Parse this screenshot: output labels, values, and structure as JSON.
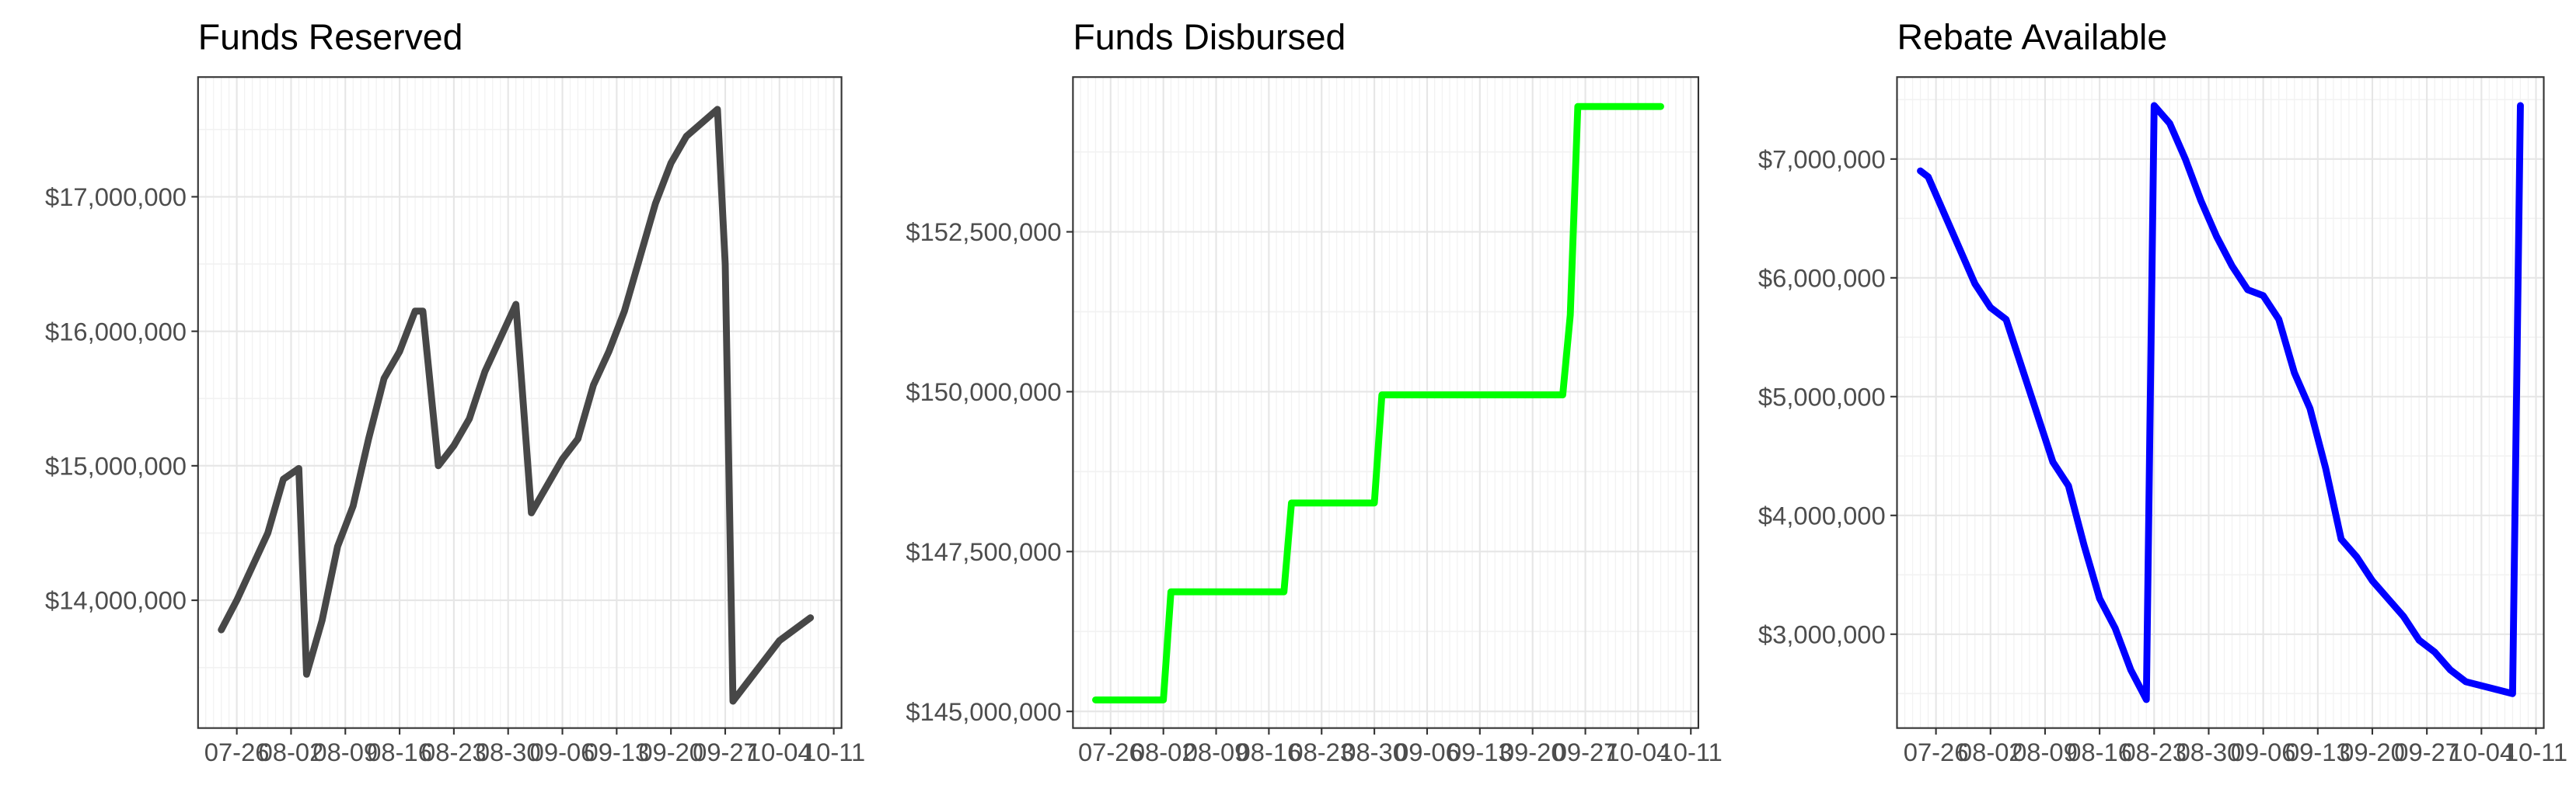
{
  "chart_data": [
    {
      "type": "line",
      "title": "Funds Reserved",
      "color": "#474747",
      "x": [
        "07-24",
        "07-26",
        "07-28",
        "07-30",
        "08-01",
        "08-03",
        "08-04",
        "08-06",
        "08-08",
        "08-10",
        "08-12",
        "08-14",
        "08-16",
        "08-18",
        "08-19",
        "08-21",
        "08-23",
        "08-25",
        "08-27",
        "08-29",
        "08-31",
        "09-02",
        "09-04",
        "09-06",
        "09-08",
        "09-10",
        "09-12",
        "09-14",
        "09-16",
        "09-18",
        "09-20",
        "09-22",
        "09-26",
        "09-27",
        "09-28",
        "09-30",
        "10-02",
        "10-04",
        "10-08"
      ],
      "values": [
        13780000,
        14000000,
        14250000,
        14500000,
        14900000,
        14980000,
        13450000,
        13850000,
        14400000,
        14700000,
        15200000,
        15650000,
        15850000,
        16150000,
        16150000,
        15000000,
        15150000,
        15350000,
        15700000,
        15950000,
        16200000,
        14650000,
        14850000,
        15050000,
        15200000,
        15600000,
        15850000,
        16150000,
        16550000,
        16950000,
        17250000,
        17450000,
        17650000,
        16500000,
        13250000,
        13400000,
        13550000,
        13700000,
        13870000
      ],
      "xlim": [
        "07-21",
        "10-12"
      ],
      "xticks": [
        "07-26",
        "08-02",
        "08-09",
        "08-16",
        "08-23",
        "08-30",
        "09-06",
        "09-13",
        "09-20",
        "09-27",
        "10-04",
        "10-11"
      ],
      "ylim": [
        13050000,
        17890000
      ],
      "yticks": [
        {
          "value": 14000000,
          "label": "$14,000,000"
        },
        {
          "value": 15000000,
          "label": "$15,000,000"
        },
        {
          "value": 16000000,
          "label": "$16,000,000"
        },
        {
          "value": 17000000,
          "label": "$17,000,000"
        }
      ],
      "grid": true
    },
    {
      "type": "line",
      "title": "Funds Disbursed",
      "color": "#00ff00",
      "x": [
        "07-24",
        "08-02",
        "08-03",
        "08-18",
        "08-19",
        "08-30",
        "08-31",
        "09-24",
        "09-25",
        "09-26",
        "10-07"
      ],
      "values": [
        145180000,
        145180000,
        146870000,
        146870000,
        148260000,
        148260000,
        149950000,
        149950000,
        151200000,
        154460000,
        154460000
      ],
      "xlim": [
        "07-21",
        "10-12"
      ],
      "xticks": [
        "07-26",
        "08-02",
        "08-09",
        "08-16",
        "08-23",
        "08-30",
        "09-06",
        "09-13",
        "09-20",
        "09-27",
        "10-04",
        "10-11"
      ],
      "ylim": [
        144740000,
        154920000
      ],
      "yticks": [
        {
          "value": 145000000,
          "label": "$145,000,000"
        },
        {
          "value": 147500000,
          "label": "$147,500,000"
        },
        {
          "value": 150000000,
          "label": "$150,000,000"
        },
        {
          "value": 152500000,
          "label": "$152,500,000"
        }
      ],
      "grid": true
    },
    {
      "type": "line",
      "title": "Rebate Available",
      "color": "#0000ff",
      "x": [
        "07-24",
        "07-25",
        "07-27",
        "07-29",
        "07-31",
        "08-02",
        "08-04",
        "08-06",
        "08-08",
        "08-10",
        "08-12",
        "08-14",
        "08-16",
        "08-18",
        "08-20",
        "08-22",
        "08-23",
        "08-25",
        "08-27",
        "08-29",
        "08-31",
        "09-02",
        "09-04",
        "09-06",
        "09-08",
        "09-10",
        "09-12",
        "09-14",
        "09-15",
        "09-16",
        "09-18",
        "09-20",
        "09-22",
        "09-24",
        "09-26",
        "09-28",
        "09-30",
        "10-02",
        "10-08",
        "10-09"
      ],
      "values": [
        6900000,
        6850000,
        6550000,
        6250000,
        5950000,
        5750000,
        5650000,
        5250000,
        4850000,
        4450000,
        4250000,
        3750000,
        3300000,
        3050000,
        2700000,
        2450000,
        7450000,
        7300000,
        7000000,
        6650000,
        6350000,
        6100000,
        5900000,
        5850000,
        5650000,
        5200000,
        4900000,
        4400000,
        4100000,
        3800000,
        3650000,
        3450000,
        3300000,
        3150000,
        2950000,
        2850000,
        2700000,
        2600000,
        2500000,
        7450000
      ],
      "xlim": [
        "07-21",
        "10-12"
      ],
      "xticks": [
        "07-26",
        "08-02",
        "08-09",
        "08-16",
        "08-23",
        "08-30",
        "09-06",
        "09-13",
        "09-20",
        "09-27",
        "10-04",
        "10-11"
      ],
      "ylim": [
        2210000,
        7690000
      ],
      "yticks": [
        {
          "value": 3000000,
          "label": "$3,000,000"
        },
        {
          "value": 4000000,
          "label": "$4,000,000"
        },
        {
          "value": 5000000,
          "label": "$5,000,000"
        },
        {
          "value": 6000000,
          "label": "$6,000,000"
        },
        {
          "value": 7000000,
          "label": "$7,000,000"
        }
      ],
      "grid": true
    }
  ]
}
